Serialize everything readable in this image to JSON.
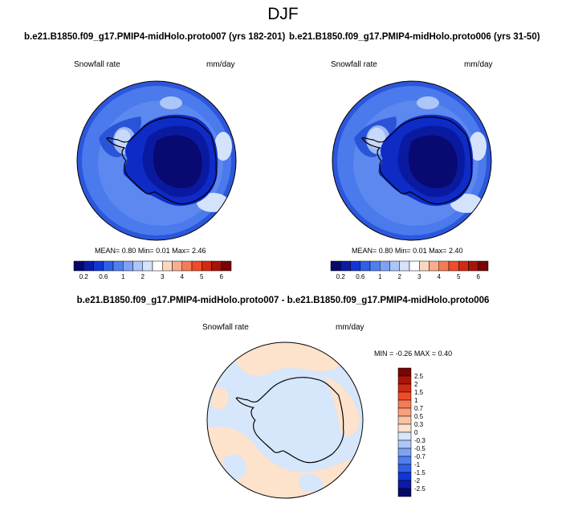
{
  "main_title": "DJF",
  "colors": {
    "seq": [
      "#08086a",
      "#0a1ba6",
      "#1236d6",
      "#2f5fe6",
      "#4f7fef",
      "#7ea3f5",
      "#acc6fa",
      "#d4e2fb",
      "#ffffff",
      "#fbd7c0",
      "#f8ae8e",
      "#f57b56",
      "#ef4c2b",
      "#d12a12",
      "#a81408",
      "#780404"
    ],
    "diff": [
      "#08086a",
      "#0a1ba6",
      "#1236d6",
      "#2f5fe6",
      "#4f7fef",
      "#7ea3f5",
      "#acc6fa",
      "#d6e6fb",
      "#fde2cc",
      "#fbc3a2",
      "#f8a07c",
      "#f57b56",
      "#ef4c2b",
      "#d12a12",
      "#a81408",
      "#780404"
    ]
  },
  "chart_data": [
    {
      "type": "heatmap",
      "title": "b.e21.B1850.f09_g17.PMIP4-midHolo.proto007 (yrs 182-201)",
      "variable": "Snowfall rate",
      "units": "mm/day",
      "mean": "0.80",
      "min": "0.01",
      "max": "2.46",
      "stats_labels": {
        "mean": "MEAN=",
        "min": "Min=",
        "max": "Max="
      },
      "colorbar_ticks": [
        "0.2",
        "0.6",
        "1",
        "2",
        "3",
        "4",
        "5",
        "6"
      ],
      "colorbar_levels": 16
    },
    {
      "type": "heatmap",
      "title": "b.e21.B1850.f09_g17.PMIP4-midHolo.proto006 (yrs 31-50)",
      "variable": "Snowfall rate",
      "units": "mm/day",
      "mean": "0.80",
      "min": "0.01",
      "max": "2.40",
      "stats_labels": {
        "mean": "MEAN=",
        "min": "Min=",
        "max": "Max="
      },
      "colorbar_ticks": [
        "0.2",
        "0.6",
        "1",
        "2",
        "3",
        "4",
        "5",
        "6"
      ],
      "colorbar_levels": 16
    },
    {
      "type": "heatmap",
      "title": "b.e21.B1850.f09_g17.PMIP4-midHolo.proto007 - b.e21.B1850.f09_g17.PMIP4-midHolo.proto006",
      "variable": "Snowfall rate",
      "units": "mm/day",
      "min": "-0.26",
      "max": "0.40",
      "stats_labels": {
        "min": "MIN =",
        "max": "MAX ="
      },
      "colorbar_ticks": [
        "2.5",
        "2",
        "1.5",
        "1",
        "0.7",
        "0.5",
        "0.3",
        "0",
        "-0.3",
        "-0.5",
        "-0.7",
        "-1",
        "-1.5",
        "-2",
        "-2.5"
      ]
    }
  ]
}
